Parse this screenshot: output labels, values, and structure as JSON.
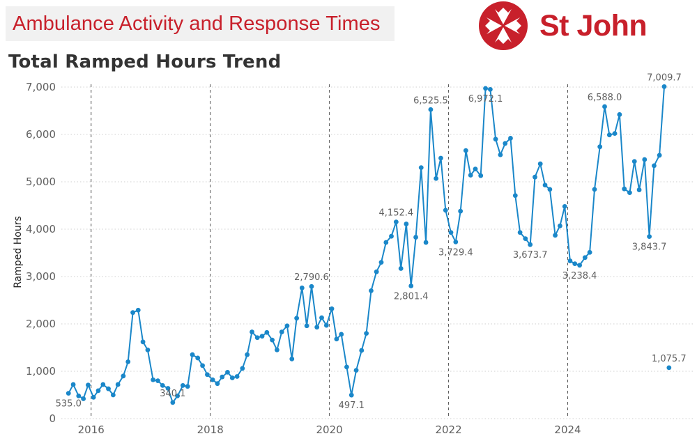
{
  "header": {
    "banner_title": "Ambulance Activity and Response Times",
    "brand_name": "St John",
    "brand_color": "#c8202b"
  },
  "chart_data": {
    "type": "line",
    "title": "Total Ramped Hours Trend",
    "ylabel": "Ramped Hours",
    "xlabel": "",
    "ylim": [
      0,
      7000
    ],
    "yticks": [
      0,
      1000,
      2000,
      3000,
      4000,
      5000,
      6000,
      7000
    ],
    "ytick_labels": [
      "0",
      "1,000",
      "2,000",
      "3,000",
      "4,000",
      "5,000",
      "6,000",
      "7,000"
    ],
    "xlim": [
      2015.5,
      2026.1
    ],
    "xticks": [
      2016,
      2018,
      2020,
      2022,
      2024
    ],
    "xtick_labels": [
      "2016",
      "2018",
      "2020",
      "2022",
      "2024"
    ],
    "grid": "horizontal dotted, vertical dashed at year marks",
    "line_color": "#1a87c9",
    "series": [
      {
        "values": [
          [
            2015.62,
            535
          ],
          [
            2015.7,
            720
          ],
          [
            2015.79,
            480
          ],
          [
            2015.87,
            420
          ],
          [
            2015.95,
            710
          ],
          [
            2016.04,
            450
          ],
          [
            2016.12,
            590
          ],
          [
            2016.2,
            720
          ],
          [
            2016.29,
            630
          ],
          [
            2016.37,
            500
          ],
          [
            2016.45,
            720
          ],
          [
            2016.54,
            900
          ],
          [
            2016.62,
            1200
          ],
          [
            2016.7,
            2240
          ],
          [
            2016.79,
            2290
          ],
          [
            2016.87,
            1620
          ],
          [
            2016.95,
            1450
          ],
          [
            2017.04,
            820
          ],
          [
            2017.12,
            800
          ],
          [
            2017.2,
            700
          ],
          [
            2017.29,
            640
          ],
          [
            2017.37,
            340
          ],
          [
            2017.45,
            480
          ],
          [
            2017.54,
            700
          ],
          [
            2017.62,
            680
          ],
          [
            2017.7,
            1350
          ],
          [
            2017.79,
            1280
          ],
          [
            2017.87,
            1120
          ],
          [
            2017.95,
            930
          ],
          [
            2018.04,
            820
          ],
          [
            2018.12,
            740
          ],
          [
            2018.2,
            880
          ],
          [
            2018.29,
            980
          ],
          [
            2018.37,
            860
          ],
          [
            2018.45,
            890
          ],
          [
            2018.54,
            1060
          ],
          [
            2018.62,
            1350
          ],
          [
            2018.7,
            1830
          ],
          [
            2018.79,
            1710
          ],
          [
            2018.87,
            1740
          ],
          [
            2018.95,
            1820
          ],
          [
            2019.04,
            1660
          ],
          [
            2019.12,
            1450
          ],
          [
            2019.2,
            1830
          ],
          [
            2019.29,
            1960
          ],
          [
            2019.37,
            1260
          ],
          [
            2019.45,
            2120
          ],
          [
            2019.54,
            2760
          ],
          [
            2019.62,
            1960
          ],
          [
            2019.7,
            2790.6
          ],
          [
            2019.79,
            1930
          ],
          [
            2019.87,
            2130
          ],
          [
            2019.95,
            1970
          ],
          [
            2020.04,
            2320
          ],
          [
            2020.12,
            1680
          ],
          [
            2020.2,
            1780
          ],
          [
            2020.29,
            1090
          ],
          [
            2020.37,
            497.1
          ],
          [
            2020.45,
            1020
          ],
          [
            2020.54,
            1440
          ],
          [
            2020.62,
            1800
          ],
          [
            2020.7,
            2700
          ],
          [
            2020.79,
            3100
          ],
          [
            2020.87,
            3300
          ],
          [
            2020.95,
            3720
          ],
          [
            2021.04,
            3850
          ],
          [
            2021.12,
            4152.4
          ],
          [
            2021.2,
            3170
          ],
          [
            2021.29,
            4110
          ],
          [
            2021.37,
            2801.4
          ],
          [
            2021.45,
            3830
          ],
          [
            2021.54,
            5300
          ],
          [
            2021.62,
            3720
          ],
          [
            2021.7,
            6525.5
          ],
          [
            2021.79,
            5070
          ],
          [
            2021.87,
            5500
          ],
          [
            2021.95,
            4400
          ],
          [
            2022.04,
            3930
          ],
          [
            2022.12,
            3729.4
          ],
          [
            2022.2,
            4380
          ],
          [
            2022.29,
            5660
          ],
          [
            2022.37,
            5140
          ],
          [
            2022.45,
            5270
          ],
          [
            2022.54,
            5130
          ],
          [
            2022.62,
            6972.1
          ],
          [
            2022.7,
            6950
          ],
          [
            2022.79,
            5900
          ],
          [
            2022.87,
            5570
          ],
          [
            2022.95,
            5810
          ],
          [
            2023.04,
            5920
          ],
          [
            2023.12,
            4710
          ],
          [
            2023.2,
            3930
          ],
          [
            2023.29,
            3800
          ],
          [
            2023.37,
            3673.7
          ],
          [
            2023.45,
            5100
          ],
          [
            2023.54,
            5380
          ],
          [
            2023.62,
            4930
          ],
          [
            2023.7,
            4840
          ],
          [
            2023.79,
            3870
          ],
          [
            2023.87,
            4070
          ],
          [
            2023.95,
            4480
          ],
          [
            2024.04,
            3330
          ],
          [
            2024.12,
            3270
          ],
          [
            2024.2,
            3238.4
          ],
          [
            2024.29,
            3400
          ],
          [
            2024.37,
            3510
          ],
          [
            2024.45,
            4840
          ],
          [
            2024.54,
            5740
          ],
          [
            2024.62,
            6588
          ],
          [
            2024.7,
            5990
          ],
          [
            2024.79,
            6020
          ],
          [
            2024.87,
            6420
          ],
          [
            2024.95,
            4850
          ],
          [
            2025.04,
            4770
          ],
          [
            2025.12,
            5430
          ],
          [
            2025.2,
            4830
          ],
          [
            2025.29,
            5470
          ],
          [
            2025.37,
            3843.7
          ],
          [
            2025.45,
            5340
          ],
          [
            2025.54,
            5560
          ],
          [
            2025.62,
            7009.7
          ]
        ]
      },
      {
        "values": [
          [
            2025.7,
            1075.7
          ]
        ]
      }
    ],
    "annotations": [
      {
        "x": 2015.62,
        "y": 535,
        "text": "535.0",
        "pos": "below"
      },
      {
        "x": 2017.37,
        "y": 340,
        "text": "340.1",
        "pos": "above"
      },
      {
        "x": 2019.7,
        "y": 2790.6,
        "text": "2,790.6",
        "pos": "above"
      },
      {
        "x": 2020.37,
        "y": 497.1,
        "text": "497.1",
        "pos": "below"
      },
      {
        "x": 2021.12,
        "y": 4152.4,
        "text": "4,152.4",
        "pos": "above"
      },
      {
        "x": 2021.37,
        "y": 2801.4,
        "text": "2,801.4",
        "pos": "below"
      },
      {
        "x": 2021.7,
        "y": 6525.5,
        "text": "6,525.5",
        "pos": "above"
      },
      {
        "x": 2022.12,
        "y": 3729.4,
        "text": "3,729.4",
        "pos": "below"
      },
      {
        "x": 2022.62,
        "y": 6972.1,
        "text": "6,972.1",
        "pos": "below"
      },
      {
        "x": 2023.37,
        "y": 3673.7,
        "text": "3,673.7",
        "pos": "below"
      },
      {
        "x": 2024.2,
        "y": 3238.4,
        "text": "3,238.4",
        "pos": "below"
      },
      {
        "x": 2024.62,
        "y": 6588,
        "text": "6,588.0",
        "pos": "above"
      },
      {
        "x": 2025.37,
        "y": 3843.7,
        "text": "3,843.7",
        "pos": "below"
      },
      {
        "x": 2025.62,
        "y": 7009.7,
        "text": "7,009.7",
        "pos": "above"
      },
      {
        "x": 2025.7,
        "y": 1075.7,
        "text": "1,075.7",
        "pos": "above"
      }
    ]
  }
}
